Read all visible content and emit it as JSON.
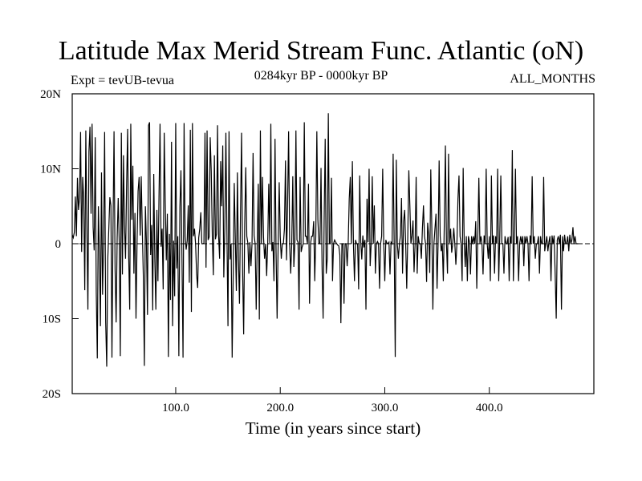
{
  "chart_data": {
    "type": "line",
    "title": "Latitude Max Merid Stream Func. Atlantic (oN)",
    "subtitle_left": "Expt = tevUB-tevua",
    "subtitle_center": "0284kyr BP - 0000kyr BP",
    "subtitle_right": "ALL_MONTHS",
    "xlabel": "Time (in years since start)",
    "ylabel": "",
    "xlim": [
      1,
      500
    ],
    "ylim": [
      -20,
      20
    ],
    "x_ticks": [
      100,
      200,
      300,
      400
    ],
    "x_tick_labels": [
      "100.0",
      "200.0",
      "300.0",
      "400.0"
    ],
    "y_ticks": [
      -20,
      -10,
      0,
      10,
      20
    ],
    "y_tick_labels": [
      "20S",
      "10S",
      "0",
      "10N",
      "20N"
    ],
    "zero_line": "dashed",
    "grid": false,
    "series": [
      {
        "x_start": 1,
        "x_step": 1,
        "values": [
          1.2,
          0.8,
          1.5,
          6.3,
          1.0,
          8.8,
          4.5,
          6.1,
          14.9,
          -1.1,
          8.9,
          6.0,
          -6.2,
          15.1,
          2.4,
          -8.8,
          12.3,
          15.6,
          4.0,
          16.0,
          2.2,
          -0.9,
          14.2,
          -6.5,
          -15.3,
          5.0,
          -1.2,
          -11.0,
          9.5,
          -6.8,
          0.0,
          14.9,
          -10.4,
          -16.4,
          -2.1,
          2.0,
          6.2,
          5.1,
          -15.2,
          1.8,
          15.0,
          -3.4,
          -10.5,
          0.8,
          6.1,
          0.0,
          -15.0,
          14.8,
          -4.1,
          11.8,
          2.5,
          -2.0,
          7.7,
          15.3,
          -1.5,
          -8.8,
          16.0,
          3.2,
          10.4,
          -4.0,
          4.1,
          -10.0,
          0.0,
          7.0,
          8.9,
          1.1,
          9.0,
          2.0,
          -4.2,
          -16.3,
          5.0,
          0.1,
          -9.5,
          15.8,
          16.2,
          -1.5,
          2.5,
          -8.9,
          9.3,
          -2.0,
          -8.8,
          4.5,
          -5.0,
          6.2,
          16.0,
          -0.4,
          2.0,
          -6.1,
          14.8,
          5.5,
          -2.2,
          4.0,
          -15.1,
          1.3,
          -7.5,
          13.6,
          -11.0,
          0.4,
          -7.0,
          16.1,
          -3.3,
          1.0,
          -15.0,
          4.9,
          9.8,
          -2.0,
          -15.2,
          16.1,
          1.0,
          -0.8,
          0.4,
          5.1,
          -5.2,
          15.2,
          -9.1,
          16.1,
          1.0,
          2.0,
          0.0,
          -4.1,
          -5.9,
          0.8,
          2.0,
          4.2,
          0.0,
          0.0,
          0.1,
          14.8,
          -3.2,
          15.1,
          0.5,
          0.9,
          14.2,
          9.7,
          1.0,
          -4.2,
          11.8,
          0.6,
          1.3,
          15.8,
          1.1,
          -2.0,
          11.0,
          5.0,
          13.1,
          -4.5,
          2.2,
          14.8,
          1.4,
          -11.0,
          15.0,
          -2.1,
          0.0,
          -15.2,
          -4.0,
          8.1,
          0.8,
          -6.3,
          9.5,
          -2.0,
          -8.0,
          4.4,
          14.8,
          -3.6,
          -12.1,
          2.5,
          10.2,
          1.0,
          0.1,
          -4.0,
          0.2,
          -3.0,
          0.0,
          12.1,
          1.1,
          0.0,
          -8.8,
          0.4,
          8.0,
          -10.1,
          15.1,
          0.0,
          8.9,
          0.9,
          -2.0,
          0.0,
          -4.3,
          0.0,
          8.0,
          0.1,
          16.0,
          -1.0,
          0.2,
          -5.0,
          14.0,
          -1.1,
          -10.0,
          0.0,
          8.2,
          1.0,
          -2.0,
          0.0,
          0.0,
          2.0,
          11.1,
          -2.2,
          5.1,
          15.0,
          -0.1,
          -4.0,
          0.0,
          9.0,
          -3.1,
          0.0,
          15.1,
          0.5,
          0.2,
          -8.8,
          8.9,
          -1.1,
          -0.4,
          0.0,
          16.2,
          1.0,
          1.0,
          0.0,
          8.0,
          -8.0,
          0.0,
          1.0,
          1.0,
          3.0,
          -5.0,
          1.0,
          15.0,
          3.2,
          0.1,
          0.0,
          10.1,
          -3.0,
          -10.0,
          3.2,
          14.0,
          -4.0,
          -2.0,
          17.4,
          0.0,
          0.0,
          8.8,
          -5.0,
          0.0,
          0.5,
          0.2,
          0.0,
          -0.2,
          -0.3,
          -1.5,
          -10.6,
          0.0,
          0.0,
          -8.0,
          0.0,
          0.0,
          -3.0,
          0.0,
          6.0,
          8.9,
          0.0,
          11.0,
          0.0,
          -5.0,
          0.5,
          0.0,
          0.0,
          -6.1,
          9.1,
          0.3,
          -2.1,
          1.1,
          -0.5,
          0.5,
          -8.8,
          6.0,
          0.2,
          10.0,
          -3.0,
          0.0,
          9.0,
          0.0,
          5.1,
          -4.0,
          0.0,
          0.3,
          0.0,
          -6.0,
          0.0,
          1.0,
          10.0,
          0.0,
          -5.0,
          0.5,
          0.1,
          0.0,
          0.2,
          -4.1,
          0.2,
          0.0,
          12.0,
          0.0,
          -15.1,
          11.2,
          0.0,
          -2.0,
          0.0,
          1.1,
          6.1,
          -4.0,
          3.0,
          4.5,
          0.0,
          -6.0,
          1.0,
          9.8,
          5.1,
          0.0,
          1.1,
          3.1,
          -3.8,
          0.0,
          8.9,
          -4.0,
          1.0,
          0.0,
          0.0,
          -2.0,
          2.0,
          5.1,
          1.0,
          0.0,
          -5.1,
          2.8,
          1.1,
          -3.9,
          9.9,
          2.0,
          -8.8,
          0.0,
          2.0,
          4.0,
          -6.0,
          0.0,
          11.1,
          1.0,
          -1.0,
          0.0,
          -5.0,
          3.1,
          13.1,
          0.0,
          -4.0,
          12.0,
          0.1,
          2.0,
          -1.2,
          0.0,
          2.1,
          0.0,
          -2.8,
          0.0,
          6.0,
          9.1,
          1.0,
          0.0,
          -5.0,
          10.1,
          0.0,
          -3.1,
          1.0,
          -5.0,
          1.0,
          0.2,
          -4.1,
          1.0,
          0.0,
          1.0,
          0.0,
          3.0,
          -6.0,
          1.1,
          8.8,
          0.0,
          1.0,
          0.0,
          -4.1,
          1.1,
          0.0,
          10.0,
          0.0,
          -2.0,
          1.0,
          -5.0,
          9.1,
          0.0,
          1.1,
          -4.0,
          1.0,
          0.0,
          10.0,
          -5.0,
          1.1,
          9.1,
          0.1,
          0.0,
          -4.0,
          1.0,
          0.0,
          0.0,
          0.9,
          -5.0,
          1.0,
          0.0,
          12.5,
          -5.0,
          1.0,
          10.0,
          0.0,
          1.0,
          -5.0,
          0.0,
          1.0,
          0.0,
          1.0,
          -3.0,
          1.0,
          0.0,
          1.0,
          0.0,
          -5.0,
          1.1,
          0.0,
          9.0,
          0.0,
          1.0,
          -2.0,
          0.0,
          0.0,
          1.0,
          -4.0,
          1.0,
          0.0,
          0.0,
          8.9,
          -1.0,
          0.0,
          1.0,
          -1.0,
          0.2,
          1.0,
          -5.0,
          1.1,
          0.0,
          1.1,
          -4.0,
          -10.0,
          0.5,
          1.0,
          0.0,
          1.2,
          -8.8,
          1.0,
          -1.0,
          1.2,
          0.0,
          0.0,
          1.0,
          -1.0,
          1.2,
          0.0,
          0.5,
          2.2,
          0.0,
          1.0,
          0.0,
          0.0,
          0.0
        ]
      }
    ]
  }
}
